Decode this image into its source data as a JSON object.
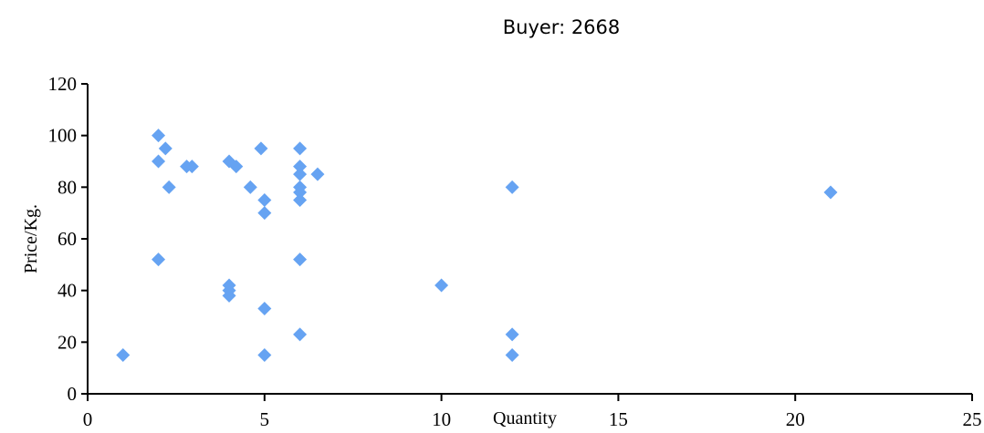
{
  "chart_data": {
    "type": "scatter",
    "title": "Buyer: 2668",
    "xlabel": "Quantity",
    "ylabel": "Price/Kg.",
    "xlim": [
      0,
      25
    ],
    "ylim": [
      0,
      120
    ],
    "xticks": [
      0,
      5,
      10,
      15,
      20,
      25
    ],
    "yticks": [
      0,
      20,
      40,
      60,
      80,
      100,
      120
    ],
    "grid": false,
    "legend": "none",
    "marker_color": "#66a3f2",
    "series": [
      {
        "points": [
          [
            1,
            15
          ],
          [
            2,
            100
          ],
          [
            2,
            90
          ],
          [
            2,
            52
          ],
          [
            2.2,
            95
          ],
          [
            2.3,
            80
          ],
          [
            2.8,
            88
          ],
          [
            2.95,
            88
          ],
          [
            4,
            90
          ],
          [
            4,
            42
          ],
          [
            4,
            40
          ],
          [
            4,
            38
          ],
          [
            4.2,
            88
          ],
          [
            4.6,
            80
          ],
          [
            4.9,
            95
          ],
          [
            5,
            75
          ],
          [
            5,
            70
          ],
          [
            5,
            33
          ],
          [
            5,
            15
          ],
          [
            6,
            95
          ],
          [
            6,
            88
          ],
          [
            6,
            85
          ],
          [
            6,
            80
          ],
          [
            6,
            78
          ],
          [
            6,
            75
          ],
          [
            6,
            52
          ],
          [
            6,
            23
          ],
          [
            6.5,
            85
          ],
          [
            10,
            42
          ],
          [
            12,
            80
          ],
          [
            12,
            23
          ],
          [
            12,
            15
          ],
          [
            21,
            78
          ]
        ]
      }
    ]
  }
}
